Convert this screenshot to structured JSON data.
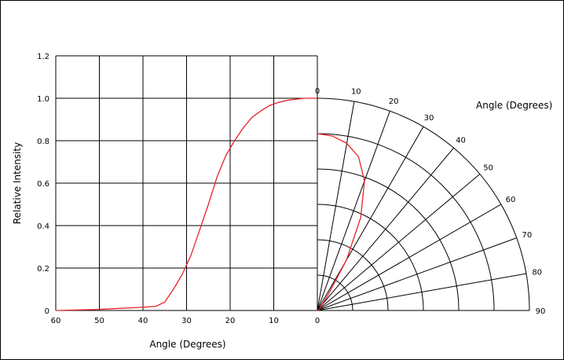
{
  "colors": {
    "grid": "#000000",
    "curve": "#e8232a",
    "background": "#ffffff"
  },
  "chart_data": {
    "type": "line",
    "title": "",
    "xlabel": "Angle (Degrees)",
    "ylabel": "Relative Intensity",
    "polar_label": "Angle (Degrees)",
    "xlim": [
      60,
      0
    ],
    "ylim": [
      0,
      1.2
    ],
    "x_ticks": [
      "60",
      "50",
      "40",
      "30",
      "20",
      "10",
      "0"
    ],
    "y_ticks": [
      "0",
      "0.2",
      "0.4",
      "0.6",
      "0.8",
      "1.0",
      "1.2"
    ],
    "polar_ticks": [
      "0",
      "10",
      "20",
      "30",
      "40",
      "50",
      "60",
      "70",
      "80",
      "90"
    ],
    "grid": true,
    "series": [
      {
        "x": [
          60,
          50,
          40,
          37,
          35,
          33,
          31,
          29,
          27,
          25,
          23,
          21,
          19,
          17,
          15,
          13,
          11,
          9,
          7,
          5,
          3,
          0
        ],
        "values": [
          0,
          0.005,
          0.015,
          0.02,
          0.04,
          0.1,
          0.17,
          0.26,
          0.38,
          0.5,
          0.63,
          0.73,
          0.8,
          0.86,
          0.91,
          0.94,
          0.965,
          0.98,
          0.99,
          0.995,
          1.0,
          1.0
        ]
      }
    ],
    "polar_series": [
      {
        "angle": [
          0,
          5,
          10,
          15,
          20,
          25,
          30,
          35,
          40,
          50,
          60
        ],
        "values": [
          1.0,
          0.99,
          0.96,
          0.9,
          0.78,
          0.58,
          0.33,
          0.1,
          0.04,
          0.02,
          0.01
        ]
      }
    ]
  }
}
